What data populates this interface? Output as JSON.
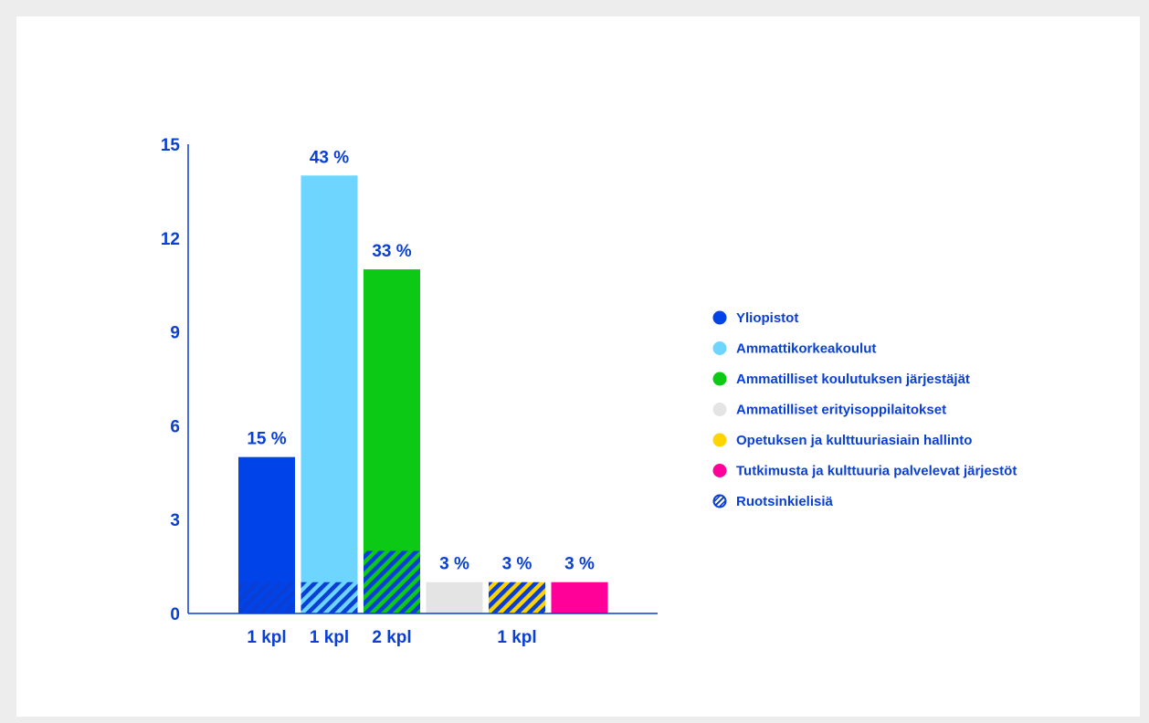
{
  "chart_data": {
    "type": "bar",
    "title": "",
    "xlabel": "",
    "ylabel": "",
    "ylim": [
      0,
      15
    ],
    "yticks": [
      0,
      3,
      6,
      9,
      12,
      15
    ],
    "grid": false,
    "legend_position": "right",
    "hatch_color": "#0a3fd6",
    "text_color": "#0a3fd6",
    "axis_color": "#0a3fd6",
    "bars": [
      {
        "category": "Yliopistot",
        "value": 5,
        "swedish": 1,
        "label": "15 %",
        "color": "#0043e8"
      },
      {
        "category": "Ammattikorkeakoulut",
        "value": 14,
        "swedish": 1,
        "label": "43 %",
        "color": "#6dd5ff"
      },
      {
        "category": "Ammatilliset koulutuksen järjestäjät",
        "value": 11,
        "swedish": 2,
        "label": "33 %",
        "color": "#0cc915"
      },
      {
        "category": "Ammatilliset erityisoppilaitokset",
        "value": 1,
        "swedish": 0,
        "label": "3 %",
        "color": "#e4e4e4"
      },
      {
        "category": "Opetuksen ja kulttuuriasiain hallinto",
        "value": 1,
        "swedish": 1,
        "label": "3 %",
        "color": "#ffd400"
      },
      {
        "category": "Tutkimusta ja kulttuuria palvelevat järjestöt",
        "value": 1,
        "swedish": 0,
        "label": "3 %",
        "color": "#ff0099"
      }
    ],
    "count_labels": [
      {
        "bar_index": 0,
        "text": "1 kpl"
      },
      {
        "bar_index": 1,
        "text": "1 kpl"
      },
      {
        "bar_index": 2,
        "text": "2 kpl"
      },
      {
        "bar_index": 4,
        "text": "1 kpl"
      }
    ],
    "legend": [
      {
        "label": "Yliopistot",
        "color": "#0043e8",
        "hatched": false
      },
      {
        "label": "Ammattikorkeakoulut",
        "color": "#6dd5ff",
        "hatched": false
      },
      {
        "label": "Ammatilliset koulutuksen järjestäjät",
        "color": "#0cc915",
        "hatched": false
      },
      {
        "label": "Ammatilliset erityisoppilaitokset",
        "color": "#e4e4e4",
        "hatched": false
      },
      {
        "label": "Opetuksen ja kulttuuriasiain hallinto",
        "color": "#ffd400",
        "hatched": false
      },
      {
        "label": "Tutkimusta ja kulttuuria palvelevat järjestöt",
        "color": "#ff0099",
        "hatched": false
      },
      {
        "label": "Ruotsinkielisiä",
        "color": "#ffffff",
        "hatched": true
      }
    ]
  }
}
